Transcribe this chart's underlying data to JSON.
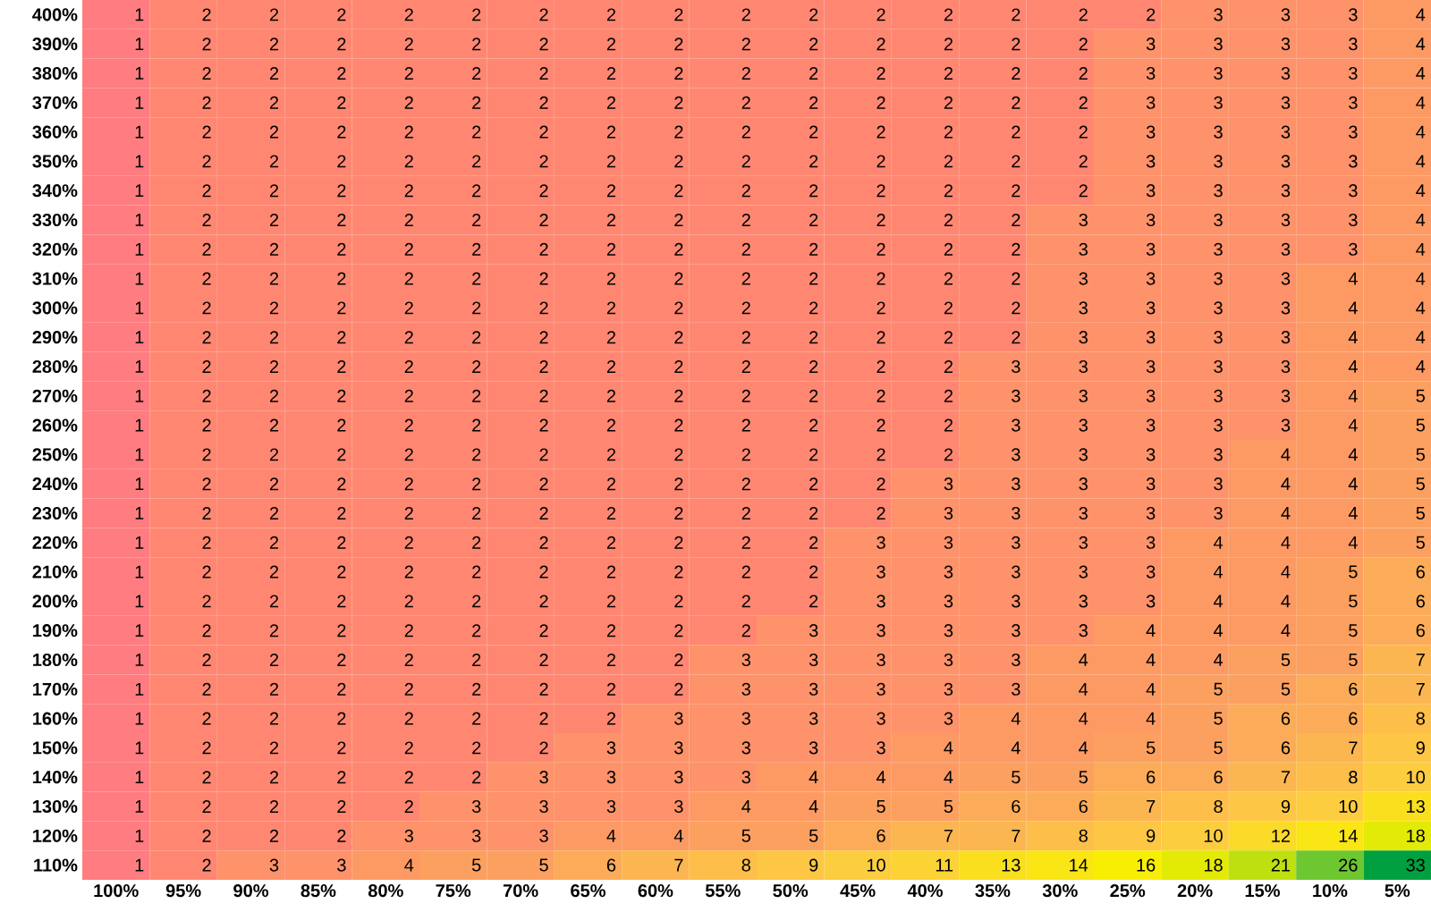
{
  "chart_data": {
    "type": "heatmap",
    "data_labels": true,
    "categories": [
      "100%",
      "95%",
      "90%",
      "85%",
      "80%",
      "75%",
      "70%",
      "65%",
      "60%",
      "55%",
      "50%",
      "45%",
      "40%",
      "35%",
      "30%",
      "25%",
      "20%",
      "15%",
      "10%",
      "5%"
    ],
    "y_categories": [
      "400%",
      "390%",
      "380%",
      "370%",
      "360%",
      "350%",
      "340%",
      "330%",
      "320%",
      "310%",
      "300%",
      "290%",
      "280%",
      "270%",
      "260%",
      "250%",
      "240%",
      "230%",
      "220%",
      "210%",
      "200%",
      "190%",
      "180%",
      "170%",
      "160%",
      "150%",
      "140%",
      "130%",
      "120%",
      "110%"
    ],
    "cells": [
      [
        1,
        2,
        2,
        2,
        2,
        2,
        2,
        2,
        2,
        2,
        2,
        2,
        2,
        2,
        2,
        2,
        3,
        3,
        3,
        4
      ],
      [
        1,
        2,
        2,
        2,
        2,
        2,
        2,
        2,
        2,
        2,
        2,
        2,
        2,
        2,
        2,
        3,
        3,
        3,
        3,
        4
      ],
      [
        1,
        2,
        2,
        2,
        2,
        2,
        2,
        2,
        2,
        2,
        2,
        2,
        2,
        2,
        2,
        3,
        3,
        3,
        3,
        4
      ],
      [
        1,
        2,
        2,
        2,
        2,
        2,
        2,
        2,
        2,
        2,
        2,
        2,
        2,
        2,
        2,
        3,
        3,
        3,
        3,
        4
      ],
      [
        1,
        2,
        2,
        2,
        2,
        2,
        2,
        2,
        2,
        2,
        2,
        2,
        2,
        2,
        2,
        3,
        3,
        3,
        3,
        4
      ],
      [
        1,
        2,
        2,
        2,
        2,
        2,
        2,
        2,
        2,
        2,
        2,
        2,
        2,
        2,
        2,
        3,
        3,
        3,
        3,
        4
      ],
      [
        1,
        2,
        2,
        2,
        2,
        2,
        2,
        2,
        2,
        2,
        2,
        2,
        2,
        2,
        2,
        3,
        3,
        3,
        3,
        4
      ],
      [
        1,
        2,
        2,
        2,
        2,
        2,
        2,
        2,
        2,
        2,
        2,
        2,
        2,
        2,
        3,
        3,
        3,
        3,
        3,
        4
      ],
      [
        1,
        2,
        2,
        2,
        2,
        2,
        2,
        2,
        2,
        2,
        2,
        2,
        2,
        2,
        3,
        3,
        3,
        3,
        3,
        4
      ],
      [
        1,
        2,
        2,
        2,
        2,
        2,
        2,
        2,
        2,
        2,
        2,
        2,
        2,
        2,
        3,
        3,
        3,
        3,
        4,
        4
      ],
      [
        1,
        2,
        2,
        2,
        2,
        2,
        2,
        2,
        2,
        2,
        2,
        2,
        2,
        2,
        3,
        3,
        3,
        3,
        4,
        4
      ],
      [
        1,
        2,
        2,
        2,
        2,
        2,
        2,
        2,
        2,
        2,
        2,
        2,
        2,
        2,
        3,
        3,
        3,
        3,
        4,
        4
      ],
      [
        1,
        2,
        2,
        2,
        2,
        2,
        2,
        2,
        2,
        2,
        2,
        2,
        2,
        3,
        3,
        3,
        3,
        3,
        4,
        4
      ],
      [
        1,
        2,
        2,
        2,
        2,
        2,
        2,
        2,
        2,
        2,
        2,
        2,
        2,
        3,
        3,
        3,
        3,
        3,
        4,
        5
      ],
      [
        1,
        2,
        2,
        2,
        2,
        2,
        2,
        2,
        2,
        2,
        2,
        2,
        2,
        3,
        3,
        3,
        3,
        3,
        4,
        5
      ],
      [
        1,
        2,
        2,
        2,
        2,
        2,
        2,
        2,
        2,
        2,
        2,
        2,
        2,
        3,
        3,
        3,
        3,
        4,
        4,
        5
      ],
      [
        1,
        2,
        2,
        2,
        2,
        2,
        2,
        2,
        2,
        2,
        2,
        2,
        3,
        3,
        3,
        3,
        3,
        4,
        4,
        5
      ],
      [
        1,
        2,
        2,
        2,
        2,
        2,
        2,
        2,
        2,
        2,
        2,
        2,
        3,
        3,
        3,
        3,
        3,
        4,
        4,
        5
      ],
      [
        1,
        2,
        2,
        2,
        2,
        2,
        2,
        2,
        2,
        2,
        2,
        3,
        3,
        3,
        3,
        3,
        4,
        4,
        4,
        5
      ],
      [
        1,
        2,
        2,
        2,
        2,
        2,
        2,
        2,
        2,
        2,
        2,
        3,
        3,
        3,
        3,
        3,
        4,
        4,
        5,
        6
      ],
      [
        1,
        2,
        2,
        2,
        2,
        2,
        2,
        2,
        2,
        2,
        2,
        3,
        3,
        3,
        3,
        3,
        4,
        4,
        5,
        6
      ],
      [
        1,
        2,
        2,
        2,
        2,
        2,
        2,
        2,
        2,
        2,
        3,
        3,
        3,
        3,
        3,
        4,
        4,
        4,
        5,
        6
      ],
      [
        1,
        2,
        2,
        2,
        2,
        2,
        2,
        2,
        2,
        3,
        3,
        3,
        3,
        3,
        4,
        4,
        4,
        5,
        5,
        7
      ],
      [
        1,
        2,
        2,
        2,
        2,
        2,
        2,
        2,
        2,
        3,
        3,
        3,
        3,
        3,
        4,
        4,
        5,
        5,
        6,
        7
      ],
      [
        1,
        2,
        2,
        2,
        2,
        2,
        2,
        2,
        3,
        3,
        3,
        3,
        3,
        4,
        4,
        4,
        5,
        6,
        6,
        8
      ],
      [
        1,
        2,
        2,
        2,
        2,
        2,
        2,
        3,
        3,
        3,
        3,
        3,
        4,
        4,
        4,
        5,
        5,
        6,
        7,
        9
      ],
      [
        1,
        2,
        2,
        2,
        2,
        2,
        3,
        3,
        3,
        3,
        4,
        4,
        4,
        5,
        5,
        6,
        6,
        7,
        8,
        10
      ],
      [
        1,
        2,
        2,
        2,
        2,
        3,
        3,
        3,
        3,
        4,
        4,
        5,
        5,
        6,
        6,
        7,
        8,
        9,
        10,
        13
      ],
      [
        1,
        2,
        2,
        2,
        3,
        3,
        3,
        4,
        4,
        5,
        5,
        6,
        7,
        7,
        8,
        9,
        10,
        12,
        14,
        18
      ],
      [
        1,
        2,
        3,
        3,
        4,
        5,
        5,
        6,
        7,
        8,
        9,
        10,
        11,
        13,
        14,
        16,
        18,
        21,
        26,
        33
      ]
    ]
  }
}
